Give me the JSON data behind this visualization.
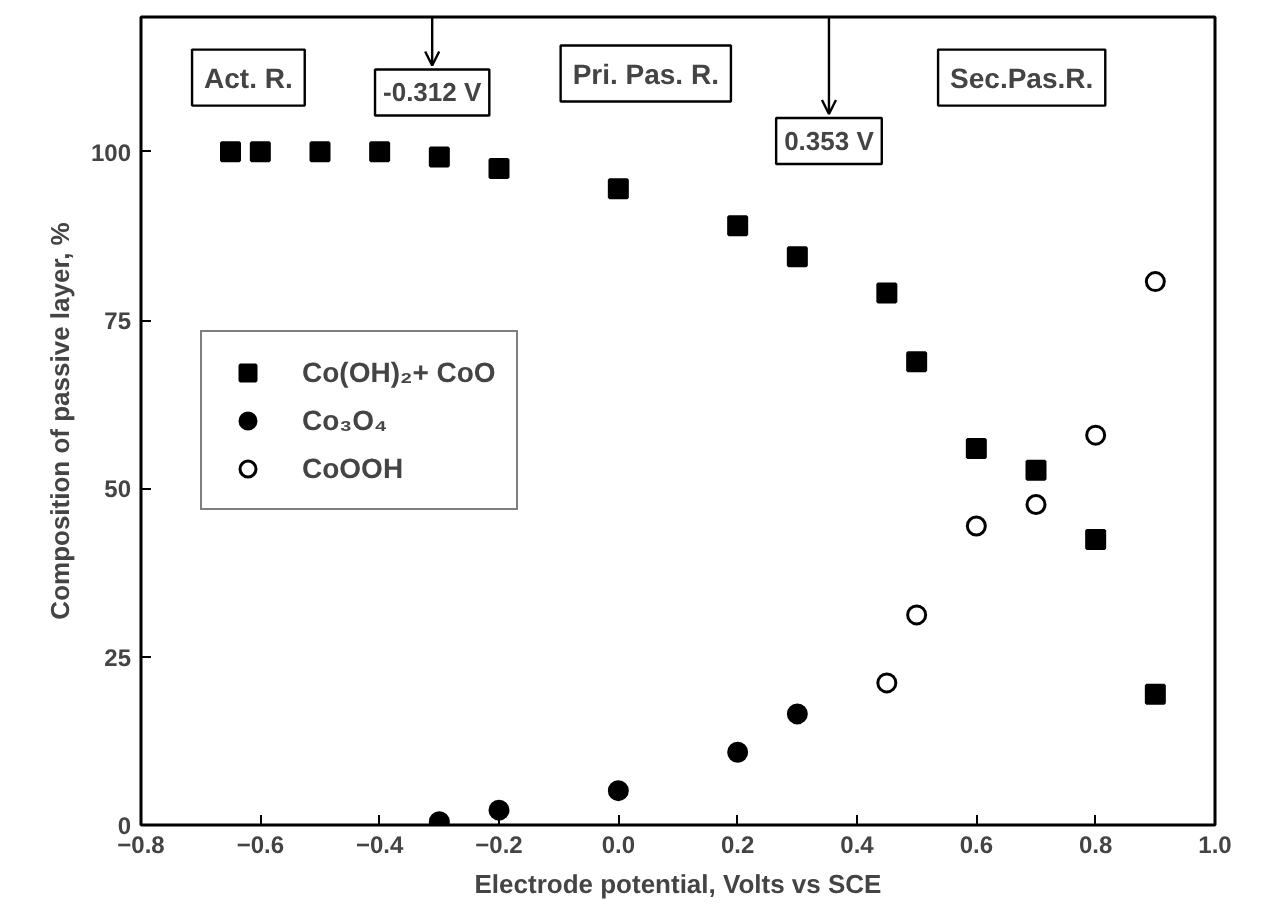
{
  "chart_data": {
    "type": "scatter",
    "xlabel": "Electrode potential, Volts vs SCE",
    "ylabel": "Composition of passive layer, %",
    "xlim": [
      -0.8,
      1.0
    ],
    "xticks": [
      -0.8,
      -0.6,
      -0.4,
      -0.2,
      {
        "value": 0,
        "label": "0.0"
      },
      0.2,
      0.4,
      0.6,
      0.8,
      {
        "value": 1,
        "label": "1.0"
      }
    ],
    "ylim": [
      0,
      120
    ],
    "yticks": [
      0,
      25,
      50,
      75,
      100
    ],
    "grid": false,
    "legend": "left",
    "series": [
      {
        "name": "Co(OH)₂+ CoO",
        "color": "#000000",
        "marker": "square",
        "x": [
          -0.65,
          -0.6,
          -0.5,
          -0.4,
          -0.3,
          -0.2,
          0.0,
          0.2,
          0.3,
          0.45,
          0.5,
          0.6,
          0.7,
          0.8,
          0.9
        ],
        "values": [
          100,
          100,
          100,
          100,
          99.2,
          97.5,
          94.5,
          89,
          84.4,
          79,
          68.8,
          55.9,
          52.7,
          42.4,
          19.4
        ]
      },
      {
        "name": "Co₃O₄",
        "color": "#000000",
        "marker": "circle",
        "x": [
          -0.3,
          -0.2,
          0.0,
          0.2,
          0.3
        ],
        "values": [
          0.5,
          2.2,
          5.1,
          10.8,
          16.5
        ]
      },
      {
        "name": "CoOOH",
        "color": "#000000",
        "marker": "circle_open",
        "x": [
          0.45,
          0.5,
          0.6,
          0.7,
          0.8,
          0.9
        ],
        "values": [
          21.1,
          31.2,
          44.4,
          47.6,
          57.9,
          80.7
        ]
      }
    ],
    "ref_lines": [
      {
        "axis": "x",
        "value": -0.312,
        "label": "-0.312 V"
      },
      {
        "axis": "x",
        "value": 0.353,
        "label": "0.353 V"
      }
    ],
    "annotations": [
      "Act. R.",
      "Pri. Pas. R.",
      "Sec.Pas.R."
    ]
  }
}
